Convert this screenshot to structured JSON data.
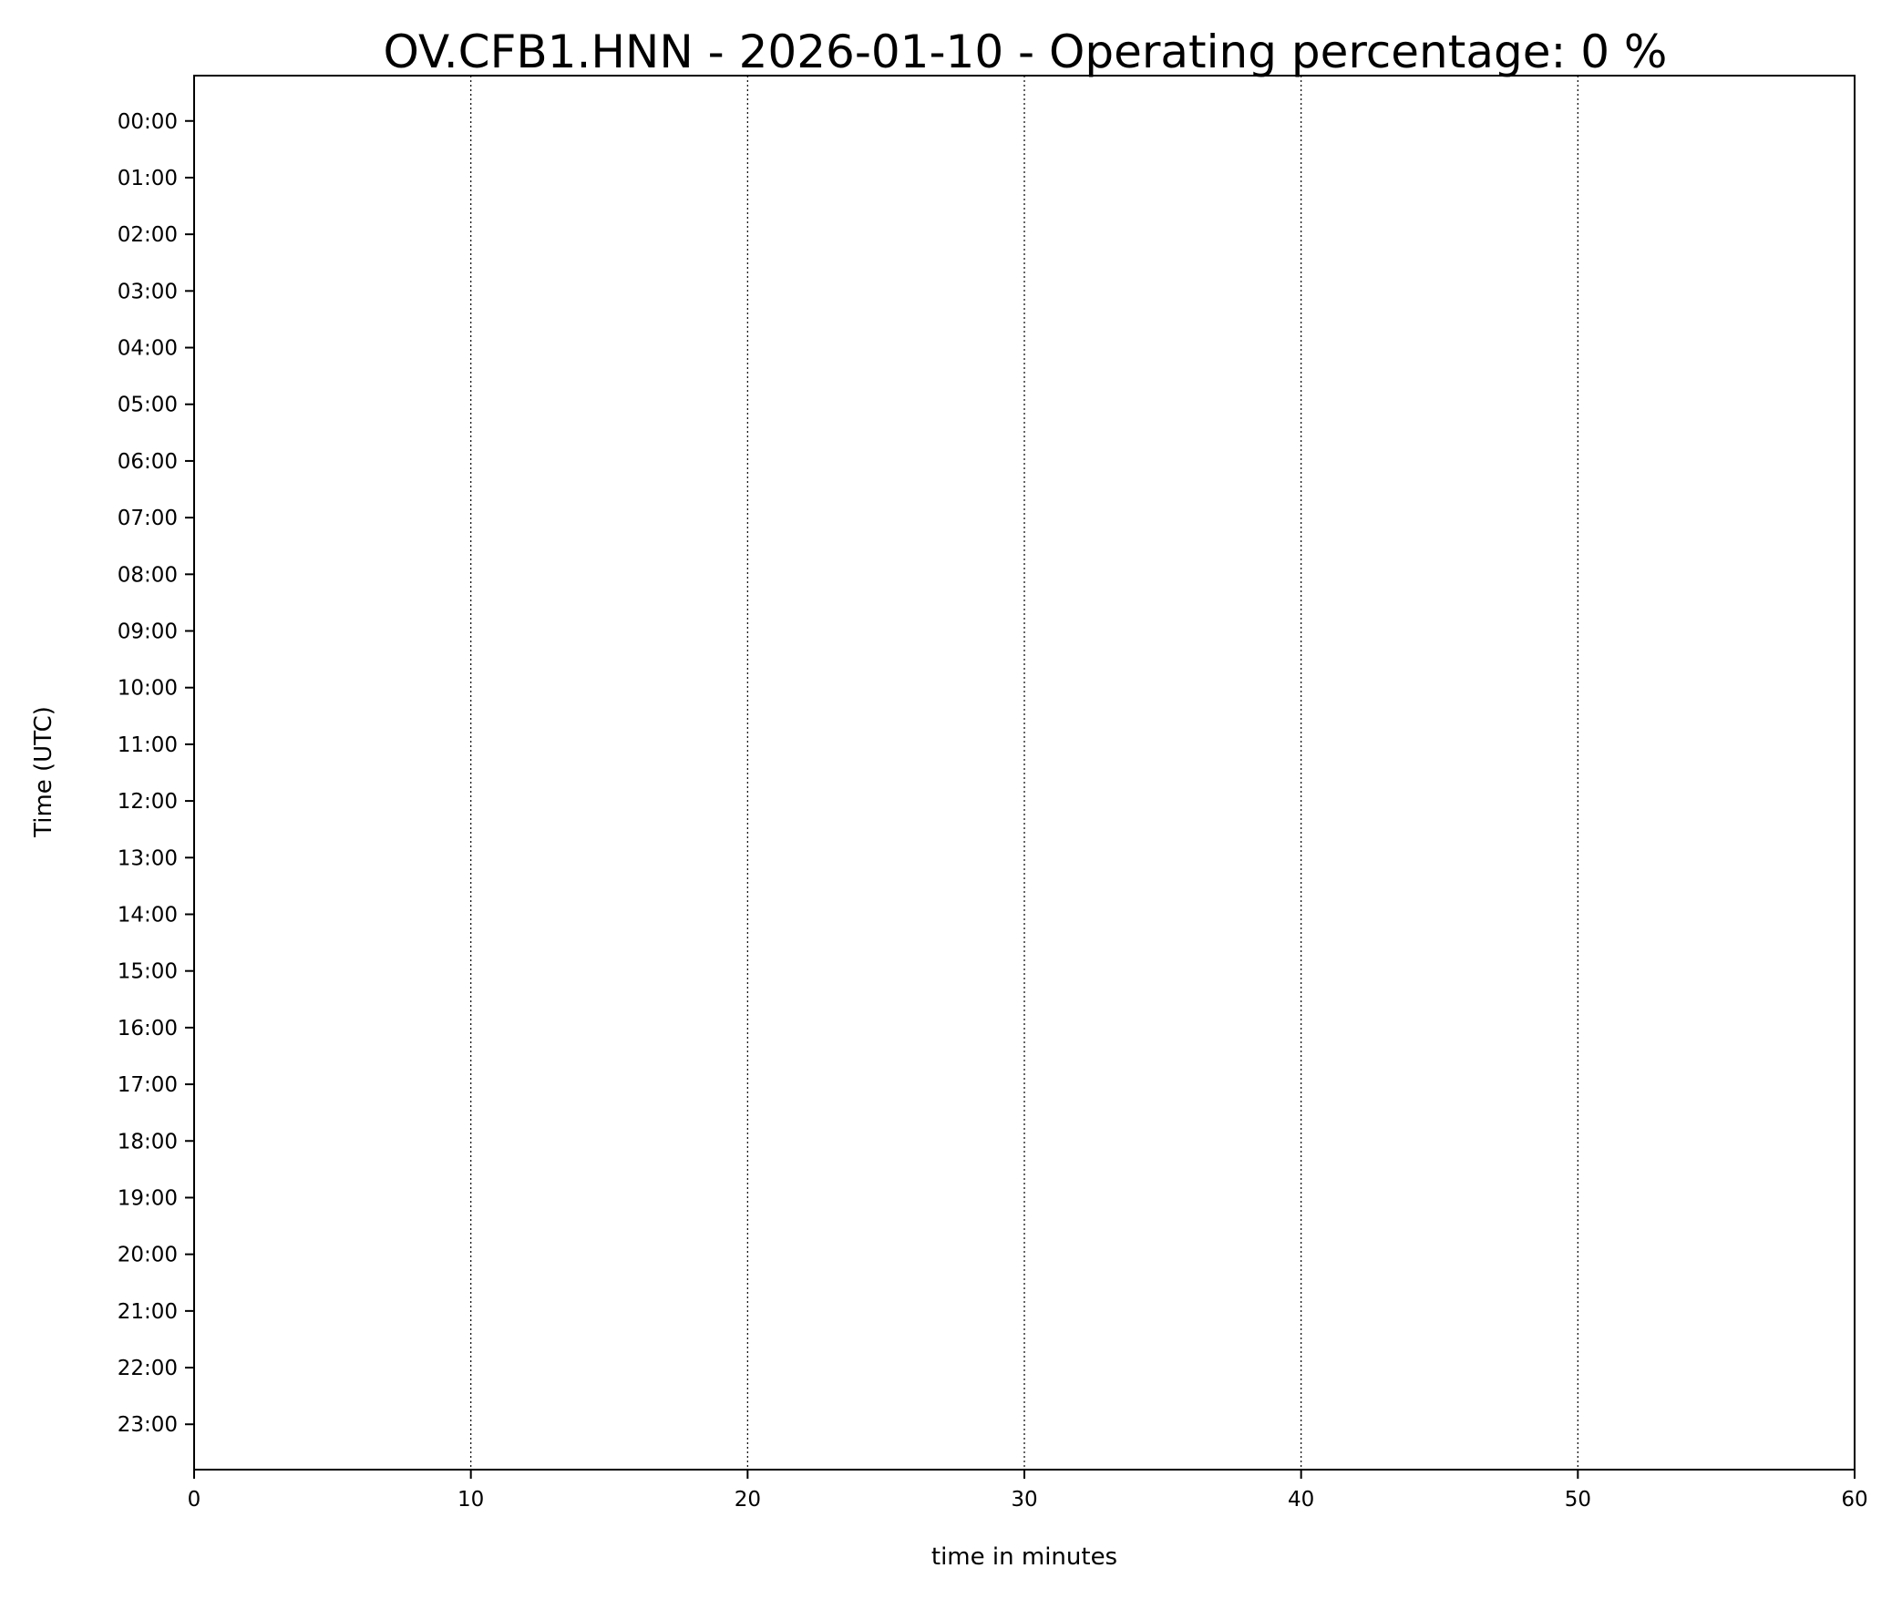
{
  "chart_data": {
    "type": "scatter",
    "title": "OV.CFB1.HNN - 2026-01-10 - Operating percentage: 0 %",
    "xlabel": "time in minutes",
    "ylabel": "Time (UTC)",
    "xlim": [
      0,
      60
    ],
    "ylim": [
      -0.8,
      23.8
    ],
    "y_inverted": true,
    "x_ticks": [
      "0",
      "10",
      "20",
      "30",
      "40",
      "50",
      "60"
    ],
    "x_tick_values": [
      0,
      10,
      20,
      30,
      40,
      50,
      60
    ],
    "y_ticks": [
      "00:00",
      "01:00",
      "02:00",
      "03:00",
      "04:00",
      "05:00",
      "06:00",
      "07:00",
      "08:00",
      "09:00",
      "10:00",
      "11:00",
      "12:00",
      "13:00",
      "14:00",
      "15:00",
      "16:00",
      "17:00",
      "18:00",
      "19:00",
      "20:00",
      "21:00",
      "22:00",
      "23:00"
    ],
    "grid": "x-dotted",
    "series": []
  }
}
